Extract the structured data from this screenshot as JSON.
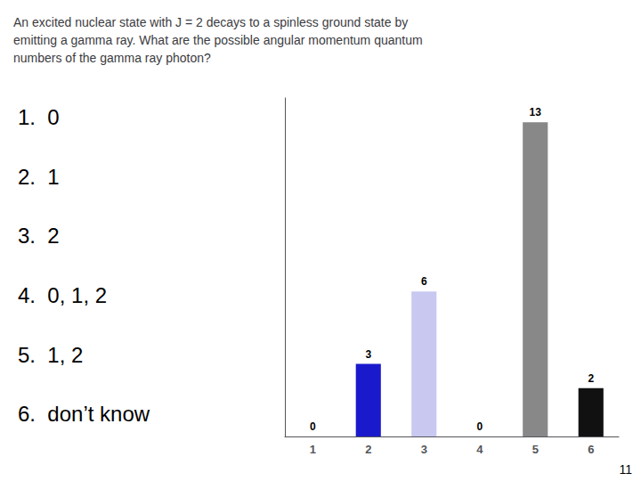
{
  "chart_data": {
    "type": "bar",
    "title": "An excited nuclear state with J = 2 decays to a spinless ground state by\nemitting a gamma ray. What are the possible angular momentum quantum\nnumbers of the gamma ray photon?",
    "categories": [
      "1",
      "2",
      "3",
      "4",
      "5",
      "6"
    ],
    "values": [
      0,
      3,
      6,
      0,
      13,
      2
    ],
    "colors": [
      "#006600",
      "#1a1acc",
      "#c8c8f0",
      "#aaaaaa",
      "#888888",
      "#111111"
    ],
    "ylim": [
      0,
      14
    ],
    "data_labels": true,
    "tick_labels": "x",
    "grid": false,
    "annotations": [
      "1.  0",
      "2.  1",
      "3.  2",
      "4.  0, 1, 2",
      "5.  1, 2",
      "6.  don’t know",
      "11"
    ]
  }
}
